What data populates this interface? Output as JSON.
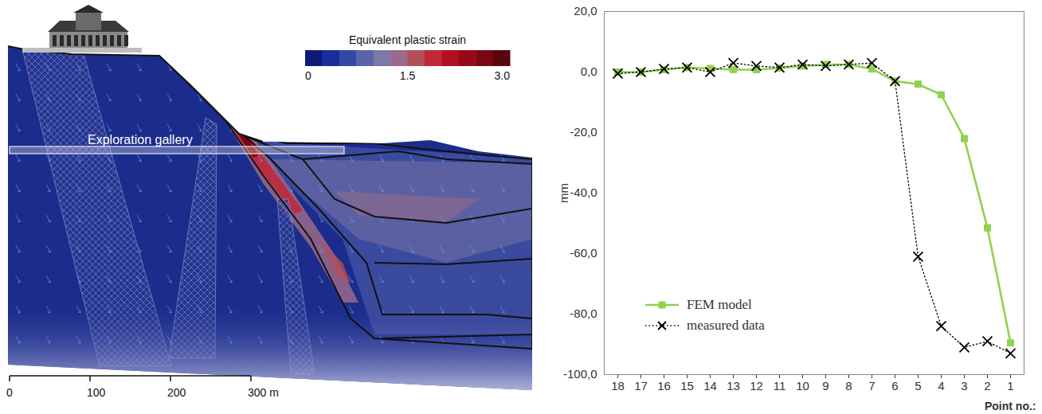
{
  "figure": {
    "gallery_label": "Exploration gallery",
    "colorbar": {
      "title": "Equivalent plastic strain",
      "range": [
        0,
        3
      ],
      "ticks": [
        0,
        1.5,
        {
          "value": 3,
          "label": "3.0"
        }
      ],
      "colors": [
        "#0d1a7a",
        "#1a2d9a",
        "#3548a8",
        "#5a64a8",
        "#7a7aa8",
        "#9a6a8a",
        "#b0505a",
        "#c0283a",
        "#b01020",
        "#960a18",
        "#7a0812",
        "#5a050c"
      ]
    },
    "scale_bar": {
      "range": [
        0,
        300
      ],
      "ticks": [
        0,
        100,
        200,
        {
          "value": 300,
          "label": "300 m"
        }
      ]
    }
  },
  "chart_data": {
    "type": "line",
    "x_label": "Point no.:",
    "y_label": "mm",
    "categories": [
      "18",
      "17",
      "16",
      "15",
      "14",
      "13",
      "12",
      "11",
      "10",
      "9",
      "8",
      "7",
      "6",
      "5",
      "4",
      "3",
      "2",
      "1"
    ],
    "series": [
      {
        "name": "FEM model",
        "color": "#92d050",
        "marker": "square",
        "line_style": "solid",
        "values": [
          0,
          0,
          0.8,
          1.5,
          1.2,
          0.8,
          0.8,
          1.3,
          2,
          2.5,
          2.5,
          1,
          -3,
          -4,
          -7.5,
          -22,
          -51.5,
          -89.5
        ]
      },
      {
        "name": "measured data",
        "color": "#000000",
        "marker": "x",
        "line_style": "dotted",
        "values": [
          -0.5,
          0,
          1,
          1.5,
          0,
          3,
          2,
          1.5,
          2.5,
          2,
          2.5,
          3,
          -3,
          -61,
          -84,
          -91,
          -89,
          -93
        ]
      }
    ],
    "ylim": [
      -100,
      20
    ],
    "yticks": [
      {
        "value": -100,
        "label": "-100,0"
      },
      {
        "value": -80,
        "label": "-80,0"
      },
      {
        "value": -60,
        "label": "-60,0"
      },
      {
        "value": -40,
        "label": "-40,0"
      },
      {
        "value": -20,
        "label": "-20,0"
      },
      {
        "value": 0,
        "label": "0,0"
      },
      {
        "value": 20,
        "label": "20,0"
      }
    ],
    "grid": false,
    "legend": "lower left"
  }
}
